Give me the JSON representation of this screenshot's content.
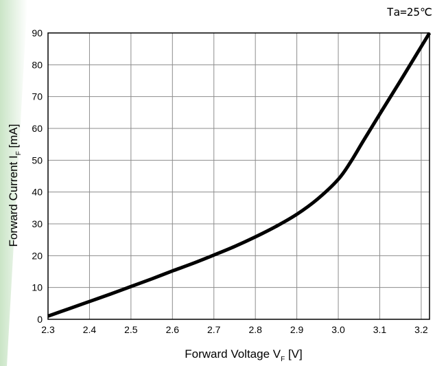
{
  "colors": {
    "accent": "#c7e3c3",
    "curve": "#000000",
    "grid": "#8c8c8c"
  },
  "chart_data": {
    "type": "line",
    "annotation": "Ta=25℃",
    "xlabel_main": "Forward Voltage V",
    "xlabel_sub": "F",
    "xlabel_unit": " [V]",
    "ylabel_main": "Forward Current I",
    "ylabel_sub": "F",
    "ylabel_unit": " [mA]",
    "xlim": [
      2.3,
      3.22
    ],
    "ylim": [
      0,
      90
    ],
    "x_ticks": [
      2.3,
      2.4,
      2.5,
      2.6,
      2.7,
      2.8,
      2.9,
      3.0,
      3.1,
      3.2
    ],
    "x_tick_labels": [
      "2.3",
      "2.4",
      "2.5",
      "2.6",
      "2.7",
      "2.8",
      "2.9",
      "3.0",
      "3.1",
      "3.2"
    ],
    "y_ticks": [
      0,
      10,
      20,
      30,
      40,
      50,
      60,
      70,
      80,
      90
    ],
    "y_tick_labels": [
      "0",
      "10",
      "20",
      "30",
      "40",
      "50",
      "60",
      "70",
      "80",
      "90"
    ],
    "grid": true,
    "series": [
      {
        "x": [
          2.3,
          2.35,
          2.4,
          2.45,
          2.5,
          2.55,
          2.6,
          2.65,
          2.7,
          2.75,
          2.8,
          2.85,
          2.9,
          2.95,
          3.0,
          3.03,
          3.06,
          3.1,
          3.15,
          3.22
        ],
        "y": [
          1.0,
          3.3,
          5.6,
          7.9,
          10.3,
          12.7,
          15.2,
          17.6,
          20.2,
          22.9,
          25.9,
          29.2,
          33.0,
          37.8,
          44.0,
          49.5,
          56.0,
          64.5,
          75.0,
          90.0
        ]
      }
    ]
  }
}
